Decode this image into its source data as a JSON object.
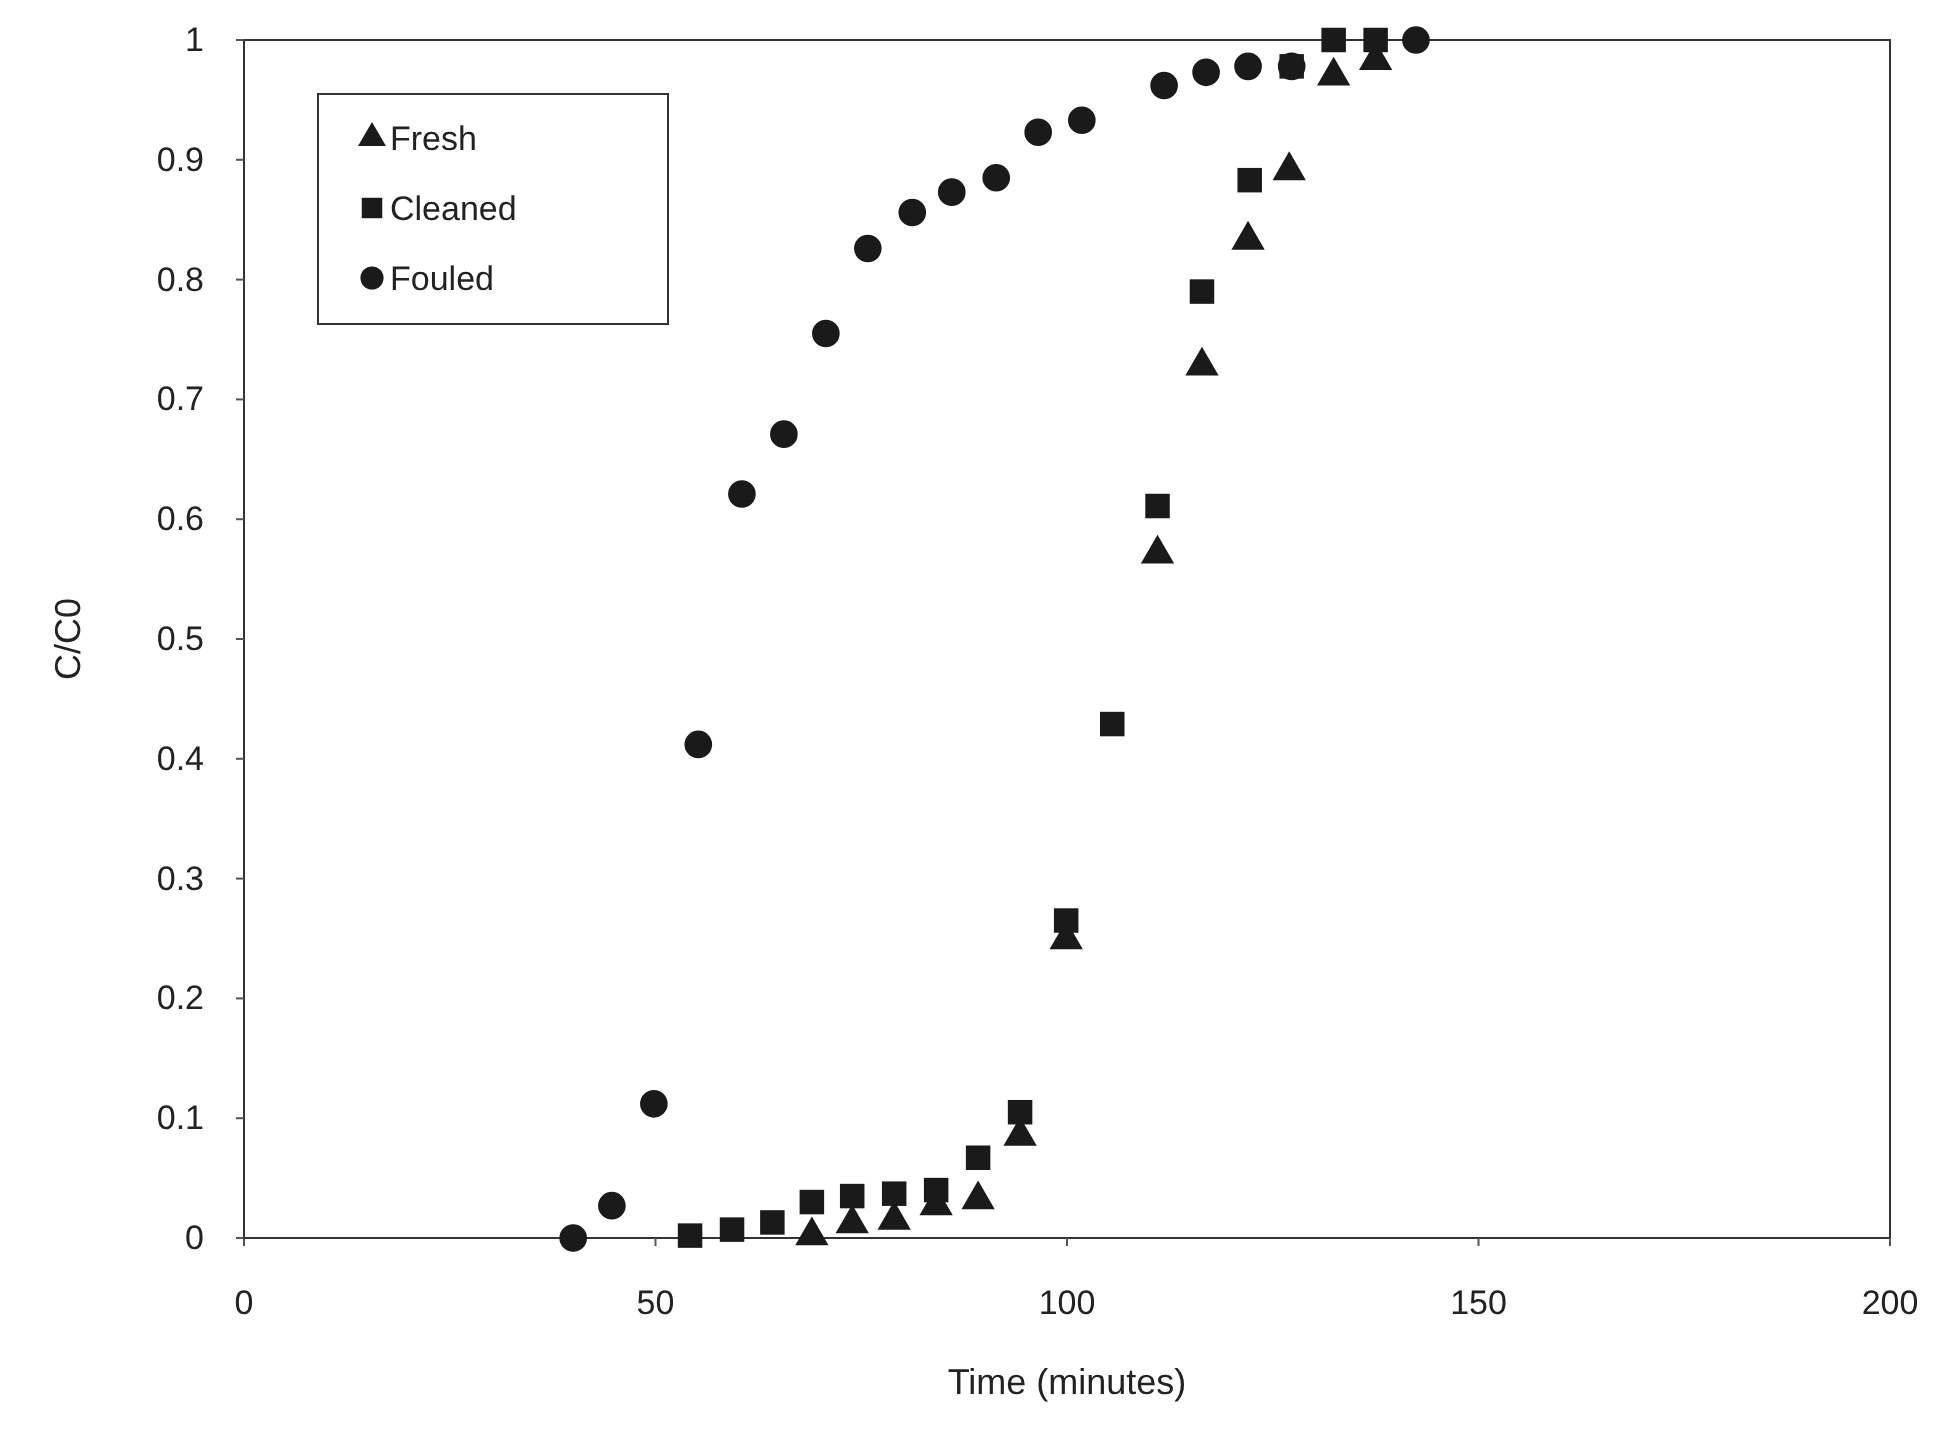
{
  "chart_data": {
    "type": "scatter",
    "xlabel": "Time (minutes)",
    "ylabel": "C/C0",
    "xlim": [
      0,
      200
    ],
    "xticks": [
      0,
      50,
      100,
      150,
      200
    ],
    "ylim": [
      0,
      1
    ],
    "yticks": [
      0,
      0.1,
      0.2,
      0.3,
      0.4,
      0.5,
      0.6,
      0.7,
      0.8,
      0.9,
      1
    ],
    "grid": false,
    "legend": "top left",
    "series": [
      {
        "name": "Fresh",
        "color": "#1a1a1a",
        "marker": "triangle",
        "x": [
          69,
          73.9,
          79,
          84.1,
          89.2,
          94.3,
          99.9,
          111,
          116.4,
          122,
          127,
          132.4,
          137.5
        ],
        "values": [
          0.002,
          0.012,
          0.015,
          0.027,
          0.032,
          0.085,
          0.249,
          0.571,
          0.728,
          0.833,
          0.891,
          0.97,
          0.983
        ]
      },
      {
        "name": "Cleaned",
        "color": "#1a1a1a",
        "marker": "square",
        "x": [
          54.2,
          59.3,
          64.2,
          69,
          73.9,
          79,
          84.1,
          89.2,
          94.3,
          99.9,
          105.5,
          111,
          116.4,
          122.2,
          127.3,
          132.4,
          137.5
        ],
        "values": [
          0.002,
          0.007,
          0.013,
          0.03,
          0.035,
          0.037,
          0.04,
          0.067,
          0.105,
          0.265,
          0.429,
          0.611,
          0.79,
          0.883,
          0.978,
          1,
          1
        ]
      },
      {
        "name": "Fouled",
        "color": "#1a1a1a",
        "marker": "circle",
        "x": [
          40,
          44.7,
          49.8,
          55.2,
          60.5,
          65.6,
          70.7,
          75.8,
          81.2,
          86,
          91.4,
          96.5,
          101.8,
          111.8,
          116.9,
          122,
          127.3,
          142.4
        ],
        "values": [
          0,
          0.027,
          0.112,
          0.412,
          0.621,
          0.671,
          0.755,
          0.826,
          0.856,
          0.873,
          0.885,
          0.923,
          0.933,
          0.962,
          0.973,
          0.978,
          0.978,
          1
        ]
      }
    ]
  }
}
